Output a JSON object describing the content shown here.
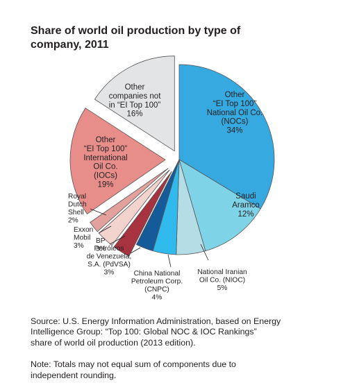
{
  "title": "Share of world oil production by type of\ncompany, 2011",
  "footnote": {
    "source": "Source: U.S. Energy Information Administration, based on Energy\nIntelligence Group: “Top 100: Global NOC & IOC Rankings”\nshare of world oil production (2013 edition).",
    "note": "Note: Totals may not equal sum of components due to\nindependent rounding."
  },
  "chart_data": {
    "type": "pie",
    "title": "Share of world oil production by type of company, 2011",
    "unit": "%",
    "start": "12 o'clock, clockwise",
    "slices": [
      {
        "label": "Other\n“EI Top 100”\nNational Oil Co.\n(NOCs)\n34%",
        "value": 34,
        "color": "#36a9e1",
        "explode": 0
      },
      {
        "label": "Saudi\nAramco\n12%",
        "value": 12,
        "color": "#7fd3e6",
        "explode": 0
      },
      {
        "label": "National Iranian\nOil Co. (NIOC)\n5%",
        "value": 5,
        "color": "#b4dde6",
        "explode": 0
      },
      {
        "label": "China National\nPetroleum Corp.\n(CNPC)\n4%",
        "value": 4,
        "color": "#2fb9ec",
        "explode": 0
      },
      {
        "label": "Petróleos\nde Venezuela,\nS.A. (PdVSA)\n3%",
        "value": 3,
        "color": "#155b99",
        "explode": 0
      },
      {
        "label": "BP\n3%",
        "value": 3,
        "color": "#a6333f",
        "explode": 1
      },
      {
        "label": "Exxon\nMobil\n3%",
        "value": 3,
        "color": "#f3d3ce",
        "explode": 1
      },
      {
        "label": "Royal\nDutch\nShell\n2%",
        "value": 2,
        "color": "#e2a19c",
        "explode": 1
      },
      {
        "label": "Other\n“EI Top 100”\nInternational\nOil Co.\n(IOCs)\n19%",
        "value": 19,
        "color": "#e78e8b",
        "explode": 1
      },
      {
        "label": "Other\ncompanies not\nin “EI Top 100”\n16%",
        "value": 16,
        "color": "#e3e4e6",
        "explode": 2
      }
    ]
  }
}
